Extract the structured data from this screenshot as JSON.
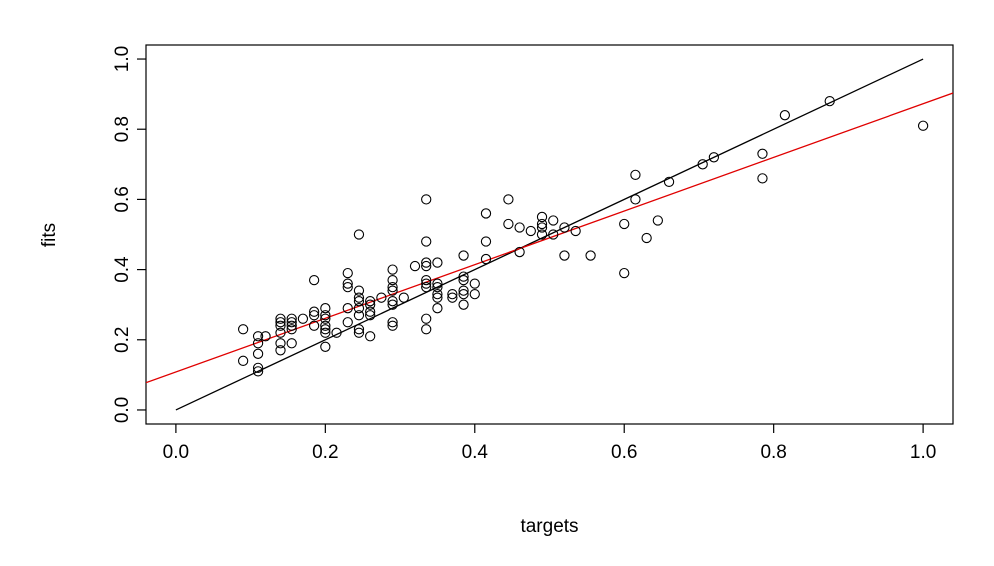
{
  "chart_data": {
    "type": "scatter",
    "xlabel": "targets",
    "ylabel": "fits",
    "xlim": [
      -0.04,
      1.04
    ],
    "ylim": [
      -0.04,
      1.04
    ],
    "xticks": [
      0.0,
      0.2,
      0.4,
      0.6,
      0.8,
      1.0
    ],
    "yticks": [
      0.0,
      0.2,
      0.4,
      0.6,
      0.8,
      1.0
    ],
    "xtick_labels": [
      "0.0",
      "0.2",
      "0.4",
      "0.6",
      "0.8",
      "1.0"
    ],
    "ytick_labels": [
      "0.0",
      "0.2",
      "0.4",
      "0.6",
      "0.8",
      "1.0"
    ],
    "grid": false,
    "legend": "none",
    "series": [
      {
        "points": [
          [
            0.09,
            0.23
          ],
          [
            0.09,
            0.14
          ],
          [
            0.11,
            0.21
          ],
          [
            0.11,
            0.16
          ],
          [
            0.11,
            0.12
          ],
          [
            0.11,
            0.11
          ],
          [
            0.11,
            0.19
          ],
          [
            0.12,
            0.21
          ],
          [
            0.14,
            0.26
          ],
          [
            0.14,
            0.25
          ],
          [
            0.14,
            0.24
          ],
          [
            0.14,
            0.22
          ],
          [
            0.14,
            0.19
          ],
          [
            0.14,
            0.17
          ],
          [
            0.155,
            0.26
          ],
          [
            0.155,
            0.25
          ],
          [
            0.155,
            0.24
          ],
          [
            0.155,
            0.23
          ],
          [
            0.155,
            0.19
          ],
          [
            0.17,
            0.26
          ],
          [
            0.185,
            0.37
          ],
          [
            0.185,
            0.28
          ],
          [
            0.185,
            0.27
          ],
          [
            0.185,
            0.24
          ],
          [
            0.2,
            0.29
          ],
          [
            0.2,
            0.27
          ],
          [
            0.2,
            0.26
          ],
          [
            0.2,
            0.24
          ],
          [
            0.2,
            0.23
          ],
          [
            0.2,
            0.22
          ],
          [
            0.2,
            0.18
          ],
          [
            0.215,
            0.22
          ],
          [
            0.23,
            0.39
          ],
          [
            0.23,
            0.36
          ],
          [
            0.23,
            0.35
          ],
          [
            0.23,
            0.29
          ],
          [
            0.23,
            0.25
          ],
          [
            0.245,
            0.5
          ],
          [
            0.245,
            0.34
          ],
          [
            0.245,
            0.32
          ],
          [
            0.245,
            0.31
          ],
          [
            0.245,
            0.29
          ],
          [
            0.245,
            0.27
          ],
          [
            0.245,
            0.23
          ],
          [
            0.245,
            0.22
          ],
          [
            0.26,
            0.31
          ],
          [
            0.26,
            0.3
          ],
          [
            0.26,
            0.28
          ],
          [
            0.26,
            0.27
          ],
          [
            0.26,
            0.21
          ],
          [
            0.275,
            0.32
          ],
          [
            0.29,
            0.4
          ],
          [
            0.29,
            0.37
          ],
          [
            0.29,
            0.35
          ],
          [
            0.29,
            0.34
          ],
          [
            0.29,
            0.31
          ],
          [
            0.29,
            0.3
          ],
          [
            0.29,
            0.25
          ],
          [
            0.29,
            0.24
          ],
          [
            0.305,
            0.32
          ],
          [
            0.32,
            0.41
          ],
          [
            0.335,
            0.6
          ],
          [
            0.335,
            0.48
          ],
          [
            0.335,
            0.42
          ],
          [
            0.335,
            0.41
          ],
          [
            0.335,
            0.37
          ],
          [
            0.335,
            0.36
          ],
          [
            0.335,
            0.35
          ],
          [
            0.335,
            0.26
          ],
          [
            0.335,
            0.23
          ],
          [
            0.35,
            0.42
          ],
          [
            0.35,
            0.36
          ],
          [
            0.35,
            0.35
          ],
          [
            0.35,
            0.33
          ],
          [
            0.35,
            0.32
          ],
          [
            0.35,
            0.29
          ],
          [
            0.37,
            0.33
          ],
          [
            0.37,
            0.32
          ],
          [
            0.385,
            0.44
          ],
          [
            0.385,
            0.38
          ],
          [
            0.385,
            0.37
          ],
          [
            0.385,
            0.34
          ],
          [
            0.385,
            0.33
          ],
          [
            0.385,
            0.3
          ],
          [
            0.4,
            0.36
          ],
          [
            0.4,
            0.33
          ],
          [
            0.415,
            0.56
          ],
          [
            0.415,
            0.48
          ],
          [
            0.415,
            0.43
          ],
          [
            0.445,
            0.6
          ],
          [
            0.445,
            0.53
          ],
          [
            0.46,
            0.52
          ],
          [
            0.46,
            0.45
          ],
          [
            0.475,
            0.51
          ],
          [
            0.49,
            0.55
          ],
          [
            0.49,
            0.53
          ],
          [
            0.49,
            0.52
          ],
          [
            0.49,
            0.5
          ],
          [
            0.505,
            0.54
          ],
          [
            0.505,
            0.5
          ],
          [
            0.52,
            0.52
          ],
          [
            0.52,
            0.44
          ],
          [
            0.535,
            0.51
          ],
          [
            0.555,
            0.44
          ],
          [
            0.6,
            0.53
          ],
          [
            0.6,
            0.39
          ],
          [
            0.615,
            0.67
          ],
          [
            0.615,
            0.6
          ],
          [
            0.63,
            0.49
          ],
          [
            0.645,
            0.54
          ],
          [
            0.66,
            0.65
          ],
          [
            0.705,
            0.7
          ],
          [
            0.72,
            0.72
          ],
          [
            0.785,
            0.73
          ],
          [
            0.785,
            0.66
          ],
          [
            0.815,
            0.84
          ],
          [
            0.875,
            0.88
          ],
          [
            1.0,
            0.81
          ]
        ],
        "color": "#000000",
        "marker": "open-circle"
      }
    ],
    "lines": [
      {
        "kind": "identity",
        "from": [
          0.0,
          0.0
        ],
        "to": [
          1.0,
          1.0
        ],
        "color": "#000000"
      },
      {
        "kind": "fit",
        "intercept": 0.1083,
        "slope": 0.7643,
        "color": "#e00000"
      }
    ]
  }
}
